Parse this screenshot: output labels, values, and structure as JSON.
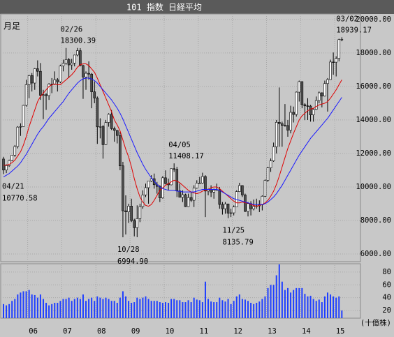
{
  "chart_data": {
    "type": "candlestick",
    "title": "101 指数 日経平均",
    "period": "月足",
    "grid": true,
    "up_color": "#ffffff",
    "down_color": "#505050",
    "categories": [
      null,
      null,
      null,
      null,
      null,
      null,
      null,
      null,
      null,
      "06",
      null,
      null,
      null,
      null,
      null,
      null,
      null,
      null,
      null,
      null,
      null,
      "07",
      null,
      null,
      null,
      null,
      null,
      null,
      null,
      null,
      null,
      null,
      null,
      "08",
      null,
      null,
      null,
      null,
      null,
      null,
      null,
      null,
      null,
      null,
      null,
      "09",
      null,
      null,
      null,
      null,
      null,
      null,
      null,
      null,
      null,
      null,
      null,
      "10",
      null,
      null,
      null,
      null,
      null,
      null,
      null,
      null,
      null,
      null,
      null,
      "11",
      null,
      null,
      null,
      null,
      null,
      null,
      null,
      null,
      null,
      null,
      null,
      "12",
      null,
      null,
      null,
      null,
      null,
      null,
      null,
      null,
      null,
      null,
      null,
      "13",
      null,
      null,
      null,
      null,
      null,
      null,
      null,
      null,
      null,
      null,
      null,
      "14",
      null,
      null,
      null,
      null,
      null,
      null,
      null,
      null,
      null,
      null,
      null,
      "15",
      null,
      null
    ],
    "ohlc": [
      [
        11668,
        11800,
        10770.58,
        11009
      ],
      [
        11009,
        11350,
        10825,
        11277
      ],
      [
        11277,
        11630,
        11200,
        11584
      ],
      [
        11584,
        11911,
        11540,
        11899
      ],
      [
        11899,
        12500,
        11800,
        12413
      ],
      [
        12413,
        13630,
        12300,
        13574
      ],
      [
        13574,
        13800,
        13050,
        13607
      ],
      [
        13607,
        14900,
        13600,
        14872
      ],
      [
        14872,
        16400,
        14800,
        16111
      ],
      [
        16111,
        16700,
        15300,
        16650
      ],
      [
        16650,
        16800,
        15700,
        16205
      ],
      [
        16205,
        17100,
        15800,
        17060
      ],
      [
        17060,
        17560,
        16600,
        16906
      ],
      [
        16906,
        17400,
        15200,
        15467
      ],
      [
        15467,
        15800,
        14050,
        15505
      ],
      [
        15505,
        15600,
        14600,
        15457
      ],
      [
        15457,
        16200,
        15200,
        16141
      ],
      [
        16141,
        16500,
        15600,
        16128
      ],
      [
        16128,
        16900,
        16100,
        16399
      ],
      [
        16399,
        16500,
        15700,
        16274
      ],
      [
        16274,
        17300,
        16200,
        17226
      ],
      [
        17226,
        17600,
        16900,
        17383
      ],
      [
        17383,
        18300.39,
        17300,
        17604
      ],
      [
        17604,
        17700,
        16500,
        17288
      ],
      [
        17288,
        17650,
        17000,
        17400
      ],
      [
        17400,
        17900,
        17200,
        17876
      ],
      [
        17876,
        18300,
        17800,
        18138
      ],
      [
        18138,
        18290,
        17200,
        17248
      ],
      [
        17248,
        17300,
        15260,
        16569
      ],
      [
        16569,
        16900,
        15800,
        16786
      ],
      [
        16786,
        17500,
        16400,
        16738
      ],
      [
        16738,
        16800,
        14700,
        15680
      ],
      [
        15680,
        16300,
        15000,
        15308
      ],
      [
        15308,
        15400,
        12570,
        13592
      ],
      [
        13592,
        14100,
        12900,
        13603
      ],
      [
        13603,
        13700,
        11690,
        12526
      ],
      [
        12526,
        14000,
        12500,
        13850
      ],
      [
        13850,
        14400,
        13600,
        14339
      ],
      [
        14339,
        14600,
        13400,
        13481
      ],
      [
        13481,
        13600,
        12700,
        13377
      ],
      [
        13377,
        13400,
        12600,
        13073
      ],
      [
        13073,
        13300,
        11000,
        11260
      ],
      [
        11260,
        11500,
        6994.9,
        8577
      ],
      [
        8577,
        9500,
        7160,
        8512
      ],
      [
        8512,
        9000,
        7850,
        8860
      ],
      [
        8860,
        9300,
        7900,
        7994
      ],
      [
        7994,
        8100,
        7050,
        7568
      ],
      [
        7568,
        8900,
        7000,
        8110
      ],
      [
        8110,
        9000,
        7900,
        8828
      ],
      [
        8828,
        9800,
        8700,
        9523
      ],
      [
        9523,
        10200,
        9400,
        9958
      ],
      [
        9958,
        10350,
        9000,
        10357
      ],
      [
        10357,
        10700,
        10300,
        10493
      ],
      [
        10493,
        10800,
        9900,
        10133
      ],
      [
        10133,
        10300,
        9600,
        10035
      ],
      [
        10035,
        10100,
        9100,
        9346
      ],
      [
        9346,
        10650,
        9300,
        10546
      ],
      [
        10546,
        10990,
        10150,
        10198
      ],
      [
        10198,
        10500,
        9800,
        10126
      ],
      [
        10126,
        11100,
        10100,
        11090
      ],
      [
        11090,
        11408.17,
        10900,
        11057
      ],
      [
        11057,
        11200,
        9400,
        9769
      ],
      [
        9769,
        10200,
        9500,
        9383
      ],
      [
        9383,
        9800,
        9100,
        9537
      ],
      [
        9537,
        9600,
        8800,
        8824
      ],
      [
        8824,
        9600,
        8800,
        9369
      ],
      [
        9369,
        9700,
        9100,
        9202
      ],
      [
        9202,
        10100,
        8800,
        9937
      ],
      [
        9937,
        10400,
        9900,
        10229
      ],
      [
        10229,
        10600,
        10200,
        10237
      ],
      [
        10237,
        10850,
        10200,
        10624
      ],
      [
        10624,
        10700,
        8200,
        9755
      ],
      [
        9755,
        9900,
        9500,
        9850
      ],
      [
        9850,
        10100,
        9400,
        9694
      ],
      [
        9694,
        9900,
        9300,
        9816
      ],
      [
        9816,
        10200,
        9800,
        9833
      ],
      [
        9833,
        10000,
        8700,
        8955
      ],
      [
        8955,
        9100,
        8350,
        8700
      ],
      [
        8700,
        9100,
        8400,
        8988
      ],
      [
        8988,
        9000,
        8135.79,
        8435
      ],
      [
        8435,
        8700,
        8200,
        8455
      ],
      [
        8455,
        8900,
        8300,
        8803
      ],
      [
        8803,
        9800,
        8800,
        9723
      ],
      [
        9723,
        10250,
        9700,
        10084
      ],
      [
        10084,
        10100,
        9400,
        9520
      ],
      [
        9520,
        9600,
        8500,
        8543
      ],
      [
        8543,
        9100,
        8240,
        9007
      ],
      [
        9007,
        9150,
        8300,
        8695
      ],
      [
        8695,
        9250,
        8600,
        8840
      ],
      [
        8840,
        9300,
        8700,
        8870
      ],
      [
        8870,
        9200,
        8500,
        8928
      ],
      [
        8928,
        9500,
        8600,
        9446
      ],
      [
        9446,
        10450,
        9400,
        10395
      ],
      [
        10395,
        11200,
        10300,
        11139
      ],
      [
        11139,
        11700,
        10900,
        11559
      ],
      [
        11559,
        12650,
        11500,
        12398
      ],
      [
        12398,
        14000,
        12000,
        13861
      ],
      [
        13861,
        15940,
        12400,
        13775
      ],
      [
        13775,
        13900,
        12400,
        13677
      ],
      [
        13677,
        14950,
        13600,
        13668
      ],
      [
        13668,
        14000,
        13000,
        13389
      ],
      [
        13389,
        14850,
        13200,
        14456
      ],
      [
        14456,
        14800,
        13850,
        14328
      ],
      [
        14328,
        15700,
        14200,
        15662
      ],
      [
        15662,
        16350,
        15100,
        16291
      ],
      [
        16291,
        16300,
        14700,
        14915
      ],
      [
        14915,
        15000,
        13990,
        14841
      ],
      [
        14841,
        15300,
        14000,
        14828
      ],
      [
        14828,
        14900,
        13900,
        14304
      ],
      [
        14304,
        14700,
        13900,
        14632
      ],
      [
        14632,
        15400,
        14600,
        15162
      ],
      [
        15162,
        15700,
        15000,
        15621
      ],
      [
        15621,
        15650,
        14750,
        15425
      ],
      [
        15425,
        16350,
        15400,
        16174
      ],
      [
        16174,
        16500,
        14500,
        16414
      ],
      [
        16414,
        17600,
        16400,
        17460
      ],
      [
        17460,
        18030,
        16700,
        17451
      ],
      [
        17451,
        17800,
        16600,
        17674
      ],
      [
        17674,
        18850,
        17500,
        18798
      ],
      [
        18798,
        18939.17,
        18700,
        18815
      ]
    ],
    "series": [
      {
        "color": "#e00000",
        "values": [
          11300,
          11300,
          11350,
          11450,
          11600,
          11850,
          12100,
          12500,
          13000,
          13600,
          14100,
          14600,
          15100,
          15400,
          15600,
          15800,
          16000,
          16100,
          16150,
          16100,
          16100,
          16250,
          16400,
          16550,
          16700,
          16900,
          17150,
          17300,
          17350,
          17350,
          17250,
          17050,
          16850,
          16500,
          16100,
          15700,
          15300,
          14900,
          14500,
          14000,
          13700,
          13350,
          12800,
          12250,
          11800,
          11200,
          10500,
          9900,
          9400,
          9100,
          8900,
          8850,
          8950,
          9200,
          9500,
          9800,
          9950,
          10100,
          10200,
          10300,
          10400,
          10350,
          10250,
          10100,
          9950,
          9800,
          9700,
          9650,
          9600,
          9650,
          9750,
          9800,
          9850,
          9950,
          10000,
          10000,
          9900,
          9750,
          9600,
          9450,
          9300,
          9150,
          9050,
          9050,
          9100,
          9050,
          9050,
          8950,
          8900,
          8850,
          8900,
          8950,
          9050,
          9200,
          9450,
          9750,
          10150,
          10650,
          11200,
          11750,
          12300,
          12750,
          13200,
          13600,
          14000,
          14250,
          14400,
          14550,
          14650,
          14700,
          14800,
          14900,
          14950,
          15000,
          15100,
          15300,
          15550,
          15800,
          16100,
          16400
        ]
      },
      {
        "color": "#1a1aff",
        "values": [
          10600,
          10700,
          10800,
          10950,
          11100,
          11250,
          11450,
          11700,
          11950,
          12250,
          12550,
          12850,
          13150,
          13400,
          13600,
          13850,
          14100,
          14300,
          14500,
          14700,
          14900,
          15100,
          15350,
          15600,
          15800,
          16000,
          16200,
          16350,
          16450,
          16500,
          16500,
          16450,
          16350,
          16200,
          16000,
          15800,
          15600,
          15400,
          15200,
          14950,
          14700,
          14400,
          14050,
          13650,
          13250,
          12850,
          12450,
          12050,
          11700,
          11350,
          11050,
          10800,
          10550,
          10350,
          10150,
          10000,
          9900,
          9850,
          9800,
          9800,
          9800,
          9750,
          9750,
          9700,
          9700,
          9700,
          9700,
          9700,
          9750,
          9800,
          9850,
          9850,
          9850,
          9850,
          9850,
          9850,
          9800,
          9700,
          9600,
          9500,
          9400,
          9300,
          9250,
          9200,
          9150,
          9100,
          9050,
          9000,
          8950,
          8950,
          8950,
          8950,
          9000,
          9100,
          9250,
          9400,
          9600,
          9850,
          10100,
          10400,
          10700,
          11000,
          11300,
          11600,
          11900,
          12150,
          12400,
          12650,
          12900,
          13100,
          13300,
          13500,
          13700,
          13900,
          14100,
          14350,
          14600,
          14850,
          15100,
          15350
        ]
      }
    ],
    "ylim": [
      5540,
      20330
    ],
    "yticks": [
      {
        "value": 6000,
        "label": "6000.00"
      },
      {
        "value": 8000,
        "label": "8000.00"
      },
      {
        "value": 10000,
        "label": "10000.00"
      },
      {
        "value": 12000,
        "label": "12000.00"
      },
      {
        "value": 14000,
        "label": "14000.00"
      },
      {
        "value": 16000,
        "label": "16000.00"
      },
      {
        "value": 18000,
        "label": "18000.00"
      },
      {
        "value": 20000,
        "label": "20000.00"
      }
    ],
    "annotations": [
      {
        "date": "04/21",
        "label": "10770.58"
      },
      {
        "date": "02/26",
        "label": "18300.39"
      },
      {
        "date": "10/28",
        "label": "6994.90"
      },
      {
        "date": "04/05",
        "label": "11408.17"
      },
      {
        "date": "11/25",
        "label": "8135.79"
      },
      {
        "date": "03/02",
        "label": "18939.17"
      }
    ],
    "volume": {
      "color": "#1f3fff",
      "unit": "(十億株)",
      "ylim": [
        8,
        93
      ],
      "yticks": [
        20,
        40,
        60,
        80
      ],
      "values": [
        30,
        28,
        30,
        35,
        38,
        45,
        48,
        50,
        50,
        52,
        45,
        44,
        40,
        45,
        38,
        32,
        28,
        30,
        32,
        32,
        35,
        38,
        38,
        40,
        35,
        38,
        40,
        38,
        45,
        35,
        38,
        40,
        35,
        42,
        40,
        38,
        40,
        38,
        35,
        35,
        32,
        40,
        50,
        42,
        35,
        32,
        33,
        40,
        38,
        40,
        42,
        38,
        35,
        35,
        35,
        33,
        32,
        33,
        32,
        38,
        38,
        36,
        36,
        33,
        33,
        36,
        33,
        40,
        37,
        36,
        33,
        65,
        38,
        34,
        33,
        33,
        40,
        36,
        34,
        38,
        30,
        35,
        42,
        45,
        38,
        37,
        35,
        32,
        30,
        32,
        34,
        38,
        42,
        55,
        60,
        60,
        75,
        92,
        65,
        52,
        55,
        48,
        52,
        55,
        55,
        55,
        46,
        42,
        43,
        38,
        35,
        37,
        33,
        42,
        48,
        45,
        42,
        40,
        42,
        20
      ]
    }
  }
}
